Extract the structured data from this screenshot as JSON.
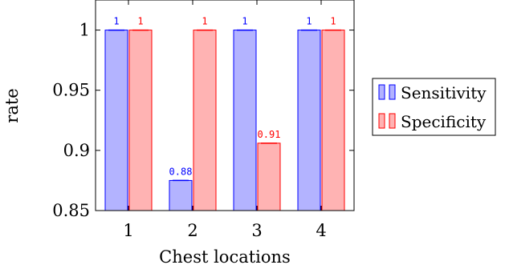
{
  "chart_data": {
    "type": "bar",
    "categories": [
      "1",
      "2",
      "3",
      "4"
    ],
    "series": [
      {
        "name": "Sensitivity",
        "values": [
          1,
          0.875,
          1,
          1
        ],
        "labels": [
          "1",
          "0.88",
          "1",
          "1"
        ],
        "fill": "#b3b3ff",
        "stroke": "#0000ff",
        "label_color": "#0000ff"
      },
      {
        "name": "Specificity",
        "values": [
          1,
          1,
          0.906,
          1
        ],
        "labels": [
          "1",
          "1",
          "0.91",
          "1"
        ],
        "fill": "#ffb3b3",
        "stroke": "#ff0000",
        "label_color": "#ff0000"
      }
    ],
    "xlabel": "Chest locations",
    "ylabel": "rate",
    "ylim": [
      0.85,
      1.025
    ],
    "yticks": [
      0.85,
      0.9,
      0.95,
      1
    ],
    "ytick_labels": [
      "0.85",
      "0.9",
      "0.95",
      "1"
    ],
    "grid": false,
    "legend_position": "right"
  }
}
